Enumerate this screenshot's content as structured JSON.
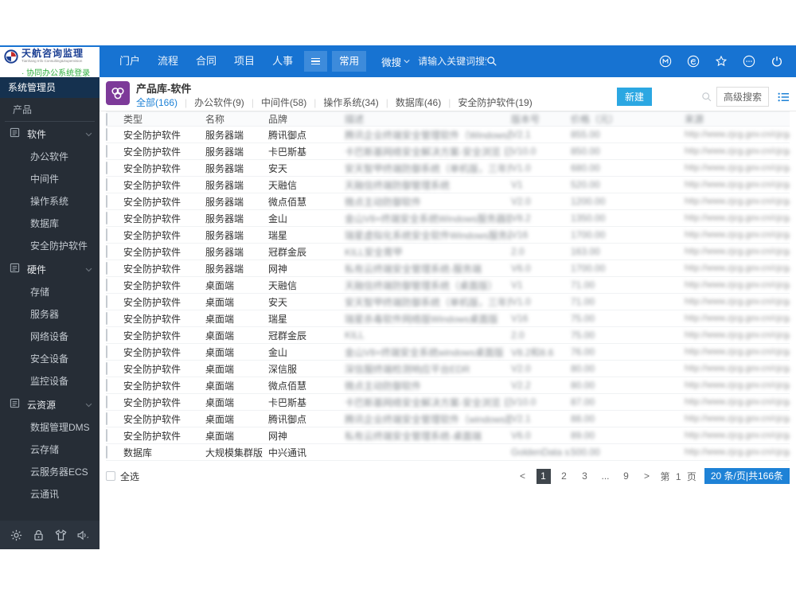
{
  "topbar": {
    "logo": {
      "title": "天航咨询监理",
      "subtitle": "Tianhang Info Consulting&Supervision",
      "login_link": "· 协同办公系统登录"
    },
    "nav_items": [
      "门户",
      "流程",
      "合同",
      "项目",
      "人事"
    ],
    "quick_tab": "常用",
    "search": {
      "scope_label": "微搜",
      "placeholder": "请输入关键词搜索"
    },
    "icons": [
      "message-m-icon",
      "enterprise-e-icon",
      "favorite-star-icon",
      "more-icon",
      "power-icon"
    ]
  },
  "sidebar": {
    "role": "系统管理员",
    "section": "产品",
    "groups": [
      {
        "label": "软件",
        "children": [
          "办公软件",
          "中间件",
          "操作系统",
          "数据库",
          "安全防护软件"
        ]
      },
      {
        "label": "硬件",
        "children": [
          "存储",
          "服务器",
          "网络设备",
          "安全设备",
          "监控设备"
        ]
      },
      {
        "label": "云资源",
        "children": [
          "数据管理DMS",
          "云存储",
          "云服务器ECS",
          "云通讯"
        ]
      }
    ],
    "footer_icons": [
      "settings-gear-icon",
      "lock-icon",
      "theme-shirt-icon",
      "volume-icon"
    ]
  },
  "content": {
    "title": "产品库-软件",
    "tabs": [
      {
        "label": "全部(166)",
        "active": true
      },
      {
        "label": "办公软件(9)",
        "active": false
      },
      {
        "label": "中间件(58)",
        "active": false
      },
      {
        "label": "操作系统(34)",
        "active": false
      },
      {
        "label": "数据库(46)",
        "active": false
      },
      {
        "label": "安全防护软件(19)",
        "active": false
      }
    ],
    "toolbar": {
      "new_button": "新建",
      "advanced_search": "高级搜索"
    },
    "table": {
      "columns": [
        {
          "label": "类型",
          "blurred": false
        },
        {
          "label": "名称",
          "blurred": false
        },
        {
          "label": "品牌",
          "blurred": false
        },
        {
          "label": "描述",
          "blurred": true
        },
        {
          "label": "版本号",
          "blurred": true
        },
        {
          "label": "价格（元）",
          "blurred": true
        },
        {
          "label": "来源",
          "blurred": true
        }
      ],
      "rows": [
        [
          "安全防护软件",
          "服务器端",
          "腾讯御点",
          "腾讯企业终端安全管理软件（Windows版）",
          "V2.1",
          "855.00",
          "http://www.zjcg.gov.cn/cjcg/"
        ],
        [
          "安全防护软件",
          "服务器端",
          "卡巴斯基",
          "卡巴斯基网络安全解决方案-安全浏览 日常防护...",
          "V10.0",
          "850.00",
          "http://www.zjcg.gov.cn/cjcg/"
        ],
        [
          "安全防护软件",
          "服务器端",
          "安天",
          "安天智甲终端防御系统（单机版，三年升级服务）",
          "V1.0",
          "680.00",
          "http://www.zjcg.gov.cn/cjcg/"
        ],
        [
          "安全防护软件",
          "服务器端",
          "天融信",
          "天融信终端防御管理系统",
          "V1",
          "520.00",
          "http://www.zjcg.gov.cn/cjcg/"
        ],
        [
          "安全防护软件",
          "服务器端",
          "微点佰慧",
          "微点主动防御软件",
          "V2.0",
          "1200.00",
          "http://www.zjcg.gov.cn/cjcg/"
        ],
        [
          "安全防护软件",
          "服务器端",
          "金山",
          "金山V8+终端安全系统Windows服务器版",
          "V8.2",
          "1350.00",
          "http://www.zjcg.gov.cn/cjcg/"
        ],
        [
          "安全防护软件",
          "服务器端",
          "瑞星",
          "瑞星虚拟化系统安全软件Windows服务器版",
          "V16",
          "1700.00",
          "http://www.zjcg.gov.cn/cjcg/"
        ],
        [
          "安全防护软件",
          "服务器端",
          "冠群金辰",
          "KILL安全胄甲",
          "2.0",
          "163.00",
          "http://www.zjcg.gov.cn/cjcg/"
        ],
        [
          "安全防护软件",
          "服务器端",
          "网神",
          "私有云终端安全管理系统-服务端",
          "V6.0",
          "1700.00",
          "http://www.zjcg.gov.cn/cjcg/"
        ],
        [
          "安全防护软件",
          "桌面端",
          "天融信",
          "天融信终端防御管理系统（桌面版）",
          "V1",
          "71.00",
          "http://www.zjcg.gov.cn/cjcg/"
        ],
        [
          "安全防护软件",
          "桌面端",
          "安天",
          "安天智甲终端防御系统（单机版，三年升级服务）",
          "V1.0",
          "71.00",
          "http://www.zjcg.gov.cn/cjcg/"
        ],
        [
          "安全防护软件",
          "桌面端",
          "瑞星",
          "瑞星杀毒软件网络版Windows桌面版",
          "V16",
          "75.00",
          "http://www.zjcg.gov.cn/cjcg/"
        ],
        [
          "安全防护软件",
          "桌面端",
          "冠群金辰",
          "KILL",
          "2.0",
          "75.00",
          "http://www.zjcg.gov.cn/cjcg/"
        ],
        [
          "安全防护软件",
          "桌面端",
          "金山",
          "金山V8+终端安全系统windows桌面版",
          "V8.2和8.6",
          "76.00",
          "http://www.zjcg.gov.cn/cjcg/"
        ],
        [
          "安全防护软件",
          "桌面端",
          "深信服",
          "深信服终端检测响应平台EDR",
          "V2.0",
          "80.00",
          "http://www.zjcg.gov.cn/cjcg/"
        ],
        [
          "安全防护软件",
          "桌面端",
          "微点佰慧",
          "微点主动防御软件",
          "V2.2",
          "80.00",
          "http://www.zjcg.gov.cn/cjcg/"
        ],
        [
          "安全防护软件",
          "桌面端",
          "卡巴斯基",
          "卡巴斯基网络安全解决方案-安全浏览 日常防护...",
          "V10.0",
          "87.00",
          "http://www.zjcg.gov.cn/cjcg/"
        ],
        [
          "安全防护软件",
          "桌面端",
          "腾讯御点",
          "腾讯企业终端安全管理软件（windows版）V2.1",
          "V2.1",
          "88.00",
          "http://www.zjcg.gov.cn/cjcg/"
        ],
        [
          "安全防护软件",
          "桌面端",
          "网神",
          "私有云终端安全管理系统-桌面端",
          "V6.0",
          "89.00",
          "http://www.zjcg.gov.cn/cjcg/"
        ],
        [
          "数据库",
          "大规模集群版",
          "中兴通讯",
          "",
          "GoldenData s...",
          "500.00",
          "http://www.zjcg.gov.cn/cjcg/"
        ]
      ]
    },
    "select_all": "全选",
    "pagination": {
      "prev": "<",
      "pages": [
        "1",
        "2",
        "3",
        "...",
        "9"
      ],
      "active_page": "1",
      "next": ">",
      "page_indicator": "第 1 页",
      "page_size_info": "20 条/页|共166条"
    }
  }
}
